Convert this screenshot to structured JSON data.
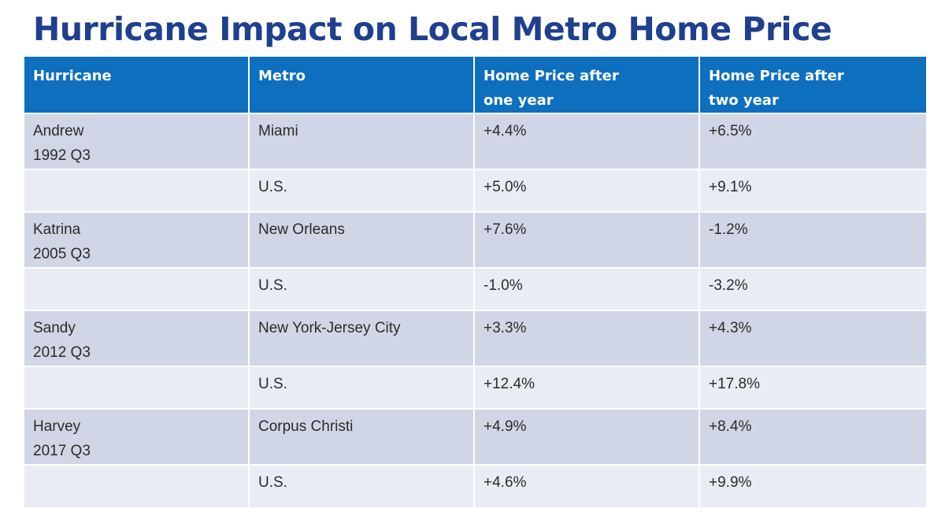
{
  "title": "Hurricane Impact on Local Metro Home Price",
  "table": {
    "headers": {
      "hurricane": "Hurricane",
      "metro": "Metro",
      "one_year_line1": "Home Price after",
      "one_year_line2": "one year",
      "two_year_line1": "Home Price after",
      "two_year_line2": "two year"
    },
    "rows": [
      {
        "hurricane": "Andrew",
        "period": "1992 Q3",
        "metro": "Miami",
        "one_year": "+4.4%",
        "two_year": "+6.5%"
      },
      {
        "hurricane": "",
        "period": "",
        "metro": "U.S.",
        "one_year": "+5.0%",
        "two_year": "+9.1%"
      },
      {
        "hurricane": "Katrina",
        "period": "2005 Q3",
        "metro": "New Orleans",
        "one_year": "+7.6%",
        "two_year": "-1.2%"
      },
      {
        "hurricane": "",
        "period": "",
        "metro": "U.S.",
        "one_year": "-1.0%",
        "two_year": "-3.2%"
      },
      {
        "hurricane": "Sandy",
        "period": "2012 Q3",
        "metro": "New York-Jersey City",
        "one_year": "+3.3%",
        "two_year": "+4.3%"
      },
      {
        "hurricane": "",
        "period": "",
        "metro": "U.S.",
        "one_year": "+12.4%",
        "two_year": "+17.8%"
      },
      {
        "hurricane": "Harvey",
        "period": "2017 Q3",
        "metro": "Corpus Christi",
        "one_year": "+4.9%",
        "two_year": "+8.4%"
      },
      {
        "hurricane": "",
        "period": "",
        "metro": "U.S.",
        "one_year": "+4.6%",
        "two_year": "+9.9%"
      }
    ]
  },
  "colors": {
    "title": "#1f3f8f",
    "header_bg": "#0e6fbf",
    "row_dark": "#d0d6e6",
    "row_light": "#e9ecf4"
  }
}
